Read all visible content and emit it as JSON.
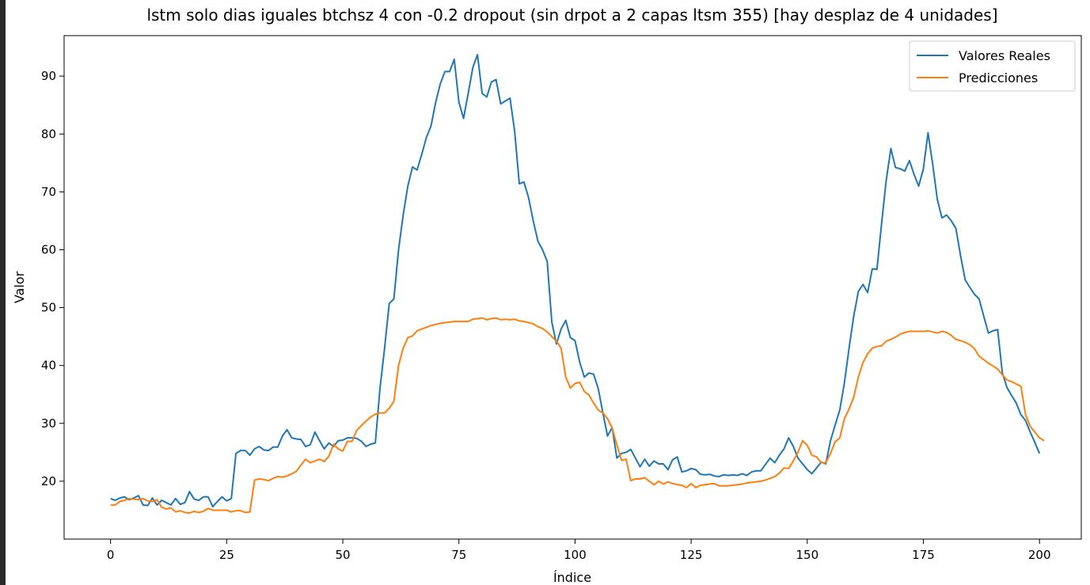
{
  "chart_data": {
    "type": "line",
    "title": "lstm solo dias iguales btchsz 4 con -0.2 dropout (sin drpot a 2 capas ltsm 355) [hay desplaz de 4 unidades]",
    "xlabel": "Índice",
    "ylabel": "Valor",
    "xlim": [
      -10,
      209
    ],
    "ylim": [
      10,
      97
    ],
    "xticks": [
      0,
      25,
      50,
      75,
      100,
      125,
      150,
      175,
      200
    ],
    "yticks": [
      20,
      30,
      40,
      50,
      60,
      70,
      80,
      90
    ],
    "grid": false,
    "legend_position": "upper right",
    "series": [
      {
        "name": "Valores Reales",
        "color": "#1f77b4",
        "values": [
          17.0,
          16.7,
          17.1,
          17.3,
          16.8,
          17.1,
          17.5,
          15.9,
          15.8,
          17.1,
          15.9,
          16.7,
          16.3,
          15.9,
          17.0,
          16.0,
          16.3,
          18.2,
          16.9,
          16.7,
          17.3,
          17.3,
          15.6,
          16.5,
          17.3,
          16.6,
          17.0,
          24.8,
          25.3,
          25.3,
          24.5,
          25.6,
          26.0,
          25.4,
          25.3,
          25.9,
          25.9,
          27.8,
          28.9,
          27.5,
          27.3,
          27.2,
          26.0,
          26.3,
          28.5,
          27.0,
          25.6,
          26.6,
          26.0,
          27.0,
          27.1,
          27.5,
          27.5,
          27.4,
          26.9,
          26.0,
          26.4,
          26.6,
          36.0,
          43.0,
          50.7,
          51.5,
          60.0,
          66.0,
          71.0,
          74.3,
          73.8,
          76.5,
          79.4,
          81.4,
          85.5,
          88.7,
          90.8,
          90.8,
          92.9,
          85.5,
          82.7,
          87.0,
          91.5,
          93.7,
          87.0,
          86.4,
          89.0,
          89.4,
          85.2,
          85.7,
          86.2,
          80.5,
          71.4,
          71.7,
          69.0,
          65.0,
          61.5,
          60.0,
          58.0,
          47.5,
          43.7,
          46.3,
          47.8,
          44.8,
          44.3,
          40.6,
          38.0,
          38.7,
          38.5,
          36.0,
          31.8,
          27.8,
          29.3,
          24.0,
          24.8,
          25.0,
          25.5,
          24.0,
          22.5,
          23.8,
          22.6,
          23.5,
          23.0,
          23.0,
          22.0,
          23.7,
          24.2,
          21.6,
          21.8,
          22.2,
          22.0,
          21.2,
          21.1,
          21.2,
          20.9,
          20.8,
          21.1,
          21.0,
          21.1,
          21.0,
          21.3,
          21.0,
          21.6,
          21.8,
          21.8,
          22.9,
          24.0,
          23.2,
          24.5,
          25.6,
          27.5,
          26.0,
          24.0,
          23.0,
          22.0,
          21.3,
          22.3,
          23.3,
          23.0,
          27.0,
          29.7,
          32.3,
          37.0,
          43.0,
          48.5,
          52.8,
          54.0,
          52.6,
          56.7,
          56.6,
          64.5,
          72.0,
          77.5,
          74.2,
          74.0,
          73.6,
          75.4,
          73.0,
          71.0,
          74.0,
          80.2,
          74.8,
          68.7,
          65.5,
          66.0,
          65.0,
          63.7,
          59.0,
          54.8,
          53.5,
          52.3,
          51.5,
          48.5,
          45.6,
          46.0,
          46.2,
          38.7,
          36.2,
          34.8,
          33.5,
          31.5,
          30.5,
          28.5,
          26.7,
          24.8
        ]
      },
      {
        "name": "Predicciones",
        "color": "#ff7f0e",
        "values": [
          15.9,
          15.9,
          16.5,
          16.7,
          17.0,
          16.9,
          16.8,
          17.0,
          16.6,
          16.5,
          16.8,
          15.5,
          15.2,
          15.4,
          14.7,
          14.9,
          14.6,
          14.5,
          14.8,
          14.6,
          14.8,
          15.3,
          15.0,
          15.0,
          15.0,
          15.0,
          14.7,
          14.9,
          14.9,
          14.6,
          14.7,
          20.2,
          20.4,
          20.3,
          20.1,
          20.5,
          20.8,
          20.7,
          20.9,
          21.3,
          21.7,
          22.8,
          23.8,
          23.2,
          23.5,
          23.8,
          23.4,
          24.3,
          26.4,
          25.6,
          25.2,
          26.9,
          26.9,
          28.8,
          29.6,
          30.4,
          31.1,
          31.6,
          31.8,
          31.8,
          32.6,
          33.8,
          40.0,
          43.0,
          44.8,
          45.1,
          46.0,
          46.3,
          46.6,
          46.9,
          47.1,
          47.3,
          47.4,
          47.5,
          47.6,
          47.6,
          47.6,
          47.6,
          48.0,
          48.1,
          48.2,
          47.9,
          48.1,
          48.2,
          47.9,
          48.0,
          47.9,
          48.0,
          47.7,
          47.6,
          47.4,
          47.2,
          46.7,
          46.4,
          45.8,
          45.0,
          44.2,
          43.0,
          38.0,
          36.1,
          36.9,
          37.1,
          35.5,
          34.9,
          33.5,
          32.3,
          31.8,
          30.8,
          29.2,
          26.3,
          23.6,
          23.8,
          20.1,
          20.4,
          20.4,
          20.6,
          20.0,
          19.4,
          20.0,
          19.5,
          19.9,
          19.6,
          19.4,
          19.3,
          18.9,
          19.6,
          18.9,
          19.3,
          19.4,
          19.5,
          19.6,
          19.2,
          19.2,
          19.2,
          19.3,
          19.4,
          19.5,
          19.7,
          19.8,
          19.9,
          20.0,
          20.2,
          20.5,
          20.8,
          21.4,
          22.3,
          22.2,
          23.5,
          25.0,
          27.0,
          26.2,
          24.5,
          24.2,
          23.2,
          23.2,
          24.8,
          26.8,
          27.5,
          30.8,
          32.5,
          34.5,
          38.0,
          40.5,
          42.0,
          43.0,
          43.3,
          43.4,
          44.2,
          44.5,
          44.9,
          45.4,
          45.7,
          45.9,
          45.9,
          45.9,
          45.9,
          46.0,
          45.8,
          45.6,
          45.9,
          45.7,
          45.2,
          44.5,
          44.3,
          44.0,
          43.6,
          42.9,
          41.6,
          41.0,
          40.4,
          39.9,
          39.4,
          38.4,
          37.5,
          37.2,
          36.8,
          36.4,
          31.5,
          29.5,
          28.5,
          27.5,
          27.0
        ]
      }
    ]
  }
}
